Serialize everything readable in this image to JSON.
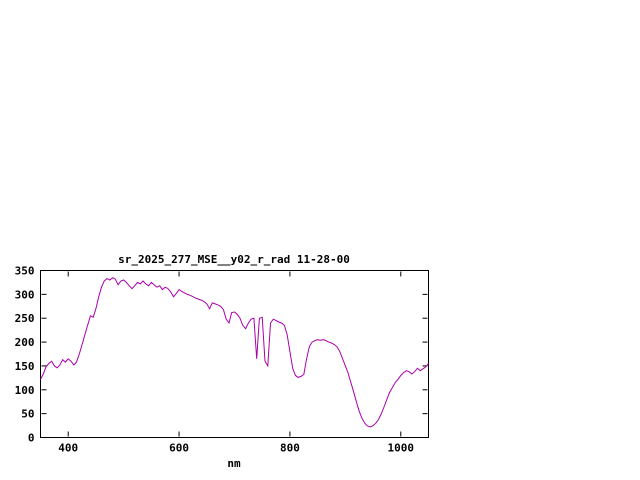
{
  "chart_data": {
    "type": "line",
    "title": "sr_2025_277_MSE__y02_r_rad 11-28-00",
    "xlabel": "nm",
    "ylabel": "",
    "xlim": [
      350,
      1050
    ],
    "ylim": [
      0,
      350
    ],
    "xticks": [
      400,
      600,
      800,
      1000
    ],
    "yticks": [
      0,
      50,
      100,
      150,
      200,
      250,
      300,
      350
    ],
    "grid": false,
    "legend": "none",
    "line_color": "#aa00aa",
    "background_color": "#ffffff",
    "border_color": "#000000",
    "x": [
      350,
      355,
      360,
      365,
      370,
      375,
      380,
      385,
      390,
      395,
      400,
      405,
      410,
      415,
      420,
      425,
      430,
      435,
      440,
      445,
      450,
      455,
      460,
      465,
      470,
      475,
      480,
      485,
      490,
      495,
      500,
      505,
      510,
      515,
      520,
      525,
      530,
      535,
      540,
      545,
      550,
      555,
      560,
      565,
      570,
      575,
      580,
      585,
      590,
      595,
      600,
      605,
      610,
      615,
      620,
      625,
      630,
      635,
      640,
      645,
      650,
      655,
      660,
      665,
      670,
      675,
      680,
      685,
      690,
      695,
      700,
      705,
      710,
      715,
      720,
      725,
      730,
      735,
      740,
      745,
      750,
      755,
      760,
      765,
      770,
      775,
      780,
      785,
      790,
      795,
      800,
      805,
      810,
      815,
      820,
      825,
      830,
      835,
      840,
      845,
      850,
      855,
      860,
      865,
      870,
      875,
      880,
      885,
      890,
      895,
      900,
      905,
      910,
      915,
      920,
      925,
      930,
      935,
      940,
      945,
      950,
      955,
      960,
      965,
      970,
      975,
      980,
      985,
      990,
      995,
      1000,
      1005,
      1010,
      1015,
      1020,
      1025,
      1030,
      1035,
      1040,
      1045,
      1050
    ],
    "y": [
      122,
      133,
      148,
      155,
      160,
      150,
      146,
      152,
      163,
      158,
      165,
      160,
      152,
      158,
      175,
      195,
      215,
      235,
      255,
      252,
      270,
      295,
      315,
      328,
      333,
      330,
      335,
      332,
      320,
      328,
      330,
      325,
      318,
      312,
      318,
      325,
      322,
      328,
      322,
      318,
      325,
      320,
      315,
      318,
      310,
      315,
      312,
      305,
      295,
      302,
      310,
      306,
      303,
      300,
      298,
      295,
      292,
      290,
      288,
      285,
      280,
      270,
      282,
      280,
      278,
      275,
      268,
      248,
      240,
      262,
      263,
      258,
      250,
      235,
      228,
      240,
      248,
      250,
      165,
      250,
      252,
      160,
      150,
      240,
      248,
      245,
      242,
      240,
      235,
      215,
      180,
      145,
      130,
      126,
      128,
      132,
      165,
      190,
      200,
      203,
      205,
      204,
      205,
      203,
      200,
      198,
      195,
      190,
      180,
      165,
      150,
      135,
      115,
      95,
      75,
      55,
      40,
      30,
      24,
      22,
      25,
      30,
      38,
      50,
      65,
      80,
      95,
      105,
      115,
      122,
      130,
      136,
      140,
      138,
      133,
      138,
      145,
      140,
      144,
      148,
      155
    ]
  }
}
